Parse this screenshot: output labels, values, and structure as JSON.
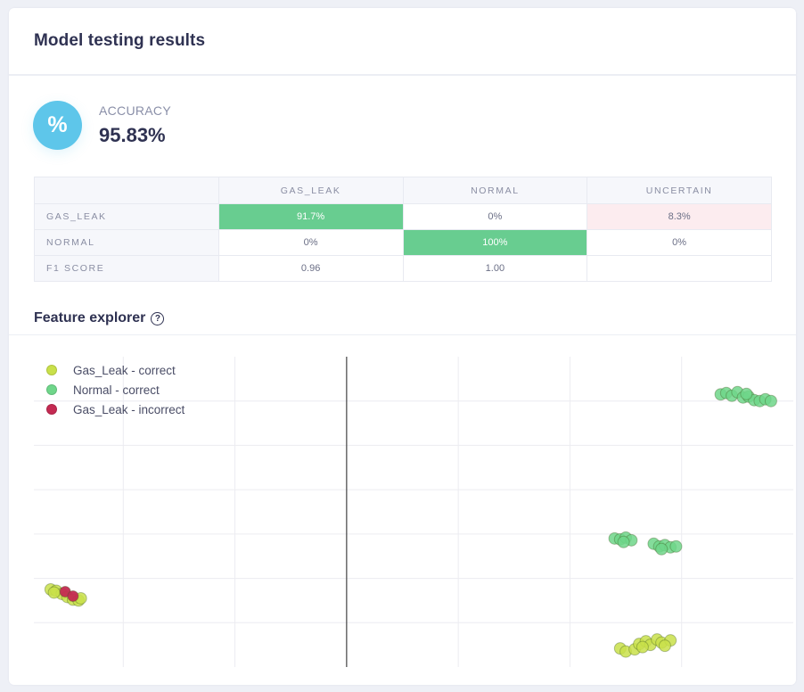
{
  "header": {
    "title": "Model testing results"
  },
  "accuracy": {
    "icon": "percent-icon",
    "icon_glyph": "%",
    "label": "ACCURACY",
    "value": "95.83%",
    "color": "#5ec6ea"
  },
  "confusion_matrix": {
    "columns": [
      "",
      "GAS_LEAK",
      "NORMAL",
      "UNCERTAIN"
    ],
    "rows": [
      {
        "label": "GAS_LEAK",
        "cells": [
          "91.7%",
          "0%",
          "8.3%"
        ],
        "styles": [
          "good",
          "",
          "bad"
        ]
      },
      {
        "label": "NORMAL",
        "cells": [
          "0%",
          "100%",
          "0%"
        ],
        "styles": [
          "",
          "good",
          ""
        ]
      },
      {
        "label": "F1 SCORE",
        "cells": [
          "0.96",
          "1.00",
          ""
        ],
        "styles": [
          "",
          "",
          ""
        ]
      }
    ],
    "colors": {
      "good": "#68cd90",
      "bad": "#fcecef"
    }
  },
  "feature_explorer": {
    "title": "Feature explorer",
    "help_icon": "help-circle-icon",
    "help_glyph": "?"
  },
  "chart_data": {
    "type": "scatter",
    "title": "Feature explorer",
    "xlabel": "",
    "ylabel": "",
    "grid": true,
    "axis_ticks_shown": false,
    "legend_position": "top-left",
    "xlim": [
      0,
      7
    ],
    "ylim": [
      0,
      7
    ],
    "zero_line_x": 3,
    "series": [
      {
        "name": "Gas_Leak - correct",
        "color": "#c9e04a",
        "points": [
          [
            0.35,
            1.75
          ],
          [
            0.4,
            1.72
          ],
          [
            0.45,
            1.65
          ],
          [
            0.5,
            1.58
          ],
          [
            0.55,
            1.52
          ],
          [
            0.6,
            1.5
          ],
          [
            0.62,
            1.55
          ],
          [
            0.38,
            1.68
          ],
          [
            5.45,
            0.42
          ],
          [
            5.5,
            0.35
          ],
          [
            5.58,
            0.4
          ],
          [
            5.62,
            0.52
          ],
          [
            5.68,
            0.58
          ],
          [
            5.72,
            0.5
          ],
          [
            5.78,
            0.62
          ],
          [
            5.82,
            0.55
          ],
          [
            5.9,
            0.6
          ],
          [
            5.85,
            0.48
          ],
          [
            5.65,
            0.45
          ]
        ]
      },
      {
        "name": "Normal - correct",
        "color": "#6fd68a",
        "points": [
          [
            6.35,
            6.15
          ],
          [
            6.4,
            6.18
          ],
          [
            6.45,
            6.12
          ],
          [
            6.5,
            6.2
          ],
          [
            6.55,
            6.08
          ],
          [
            6.6,
            6.1
          ],
          [
            6.65,
            6.02
          ],
          [
            6.7,
            6.0
          ],
          [
            6.75,
            6.04
          ],
          [
            6.8,
            6.0
          ],
          [
            6.58,
            6.16
          ],
          [
            5.4,
            2.9
          ],
          [
            5.45,
            2.88
          ],
          [
            5.5,
            2.92
          ],
          [
            5.55,
            2.86
          ],
          [
            5.48,
            2.82
          ],
          [
            5.75,
            2.78
          ],
          [
            5.8,
            2.72
          ],
          [
            5.85,
            2.75
          ],
          [
            5.9,
            2.7
          ],
          [
            5.82,
            2.66
          ],
          [
            5.95,
            2.72
          ]
        ]
      },
      {
        "name": "Gas_Leak - incorrect",
        "color": "#c42a52",
        "points": [
          [
            0.48,
            1.7
          ],
          [
            0.55,
            1.6
          ]
        ]
      }
    ]
  }
}
